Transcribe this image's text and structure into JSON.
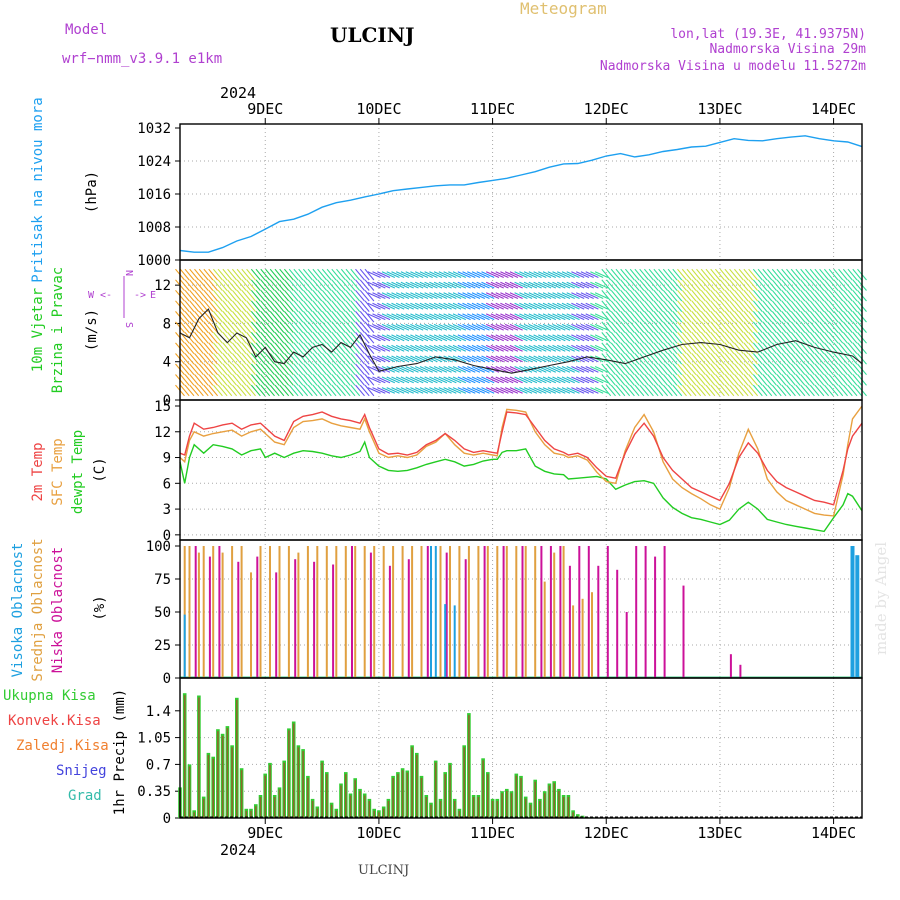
{
  "header": {
    "model_label": "Model",
    "model_name": "wrf−nmm_v3.9.1  e1km",
    "station": "ULCINJ",
    "product": "Meteogram",
    "coords": "lon,lat (19.3E, 41.9375N)",
    "elevation": "Nadmorska Visina 29m",
    "model_elevation": "Nadmorska Visina u modelu 11.5272m",
    "watermark": "made by Angel",
    "footer_station": "ULCINJ"
  },
  "colors": {
    "pressure": "#1ea0f0",
    "temp2m": "#ee4444",
    "sfc_temp": "#e8a040",
    "dewpoint": "#22cc22",
    "cloud_high": "#1ea0e0",
    "cloud_mid": "#e0a040",
    "cloud_low": "#cc1199",
    "precip_total": "#33cc33",
    "precip_conv": "#ee4444",
    "precip_frozen": "#f08030",
    "snow": "#4444dd",
    "grad": "#33bbaa",
    "header_purple": "#b040d0",
    "header_gold": "#e0c070"
  },
  "time_axis": {
    "top_year": "2024",
    "bottom_year": "2024",
    "day_labels": [
      "9DEC",
      "10DEC",
      "11DEC",
      "12DEC",
      "13DEC",
      "14DEC"
    ],
    "day_hours": [
      24,
      48,
      72,
      96,
      120,
      144
    ],
    "hour_range": [
      6,
      150
    ]
  },
  "chart_data": [
    {
      "id": "pressure",
      "type": "line",
      "ylabel": [
        "Pritisak na nivou mora",
        "(hPa)"
      ],
      "ylim": [
        1000,
        1032
      ],
      "yticks": [
        1000,
        1008,
        1016,
        1024,
        1032
      ],
      "series": [
        {
          "x": [
            6,
            9,
            12,
            15,
            18,
            21,
            24,
            27,
            30,
            33,
            36,
            39,
            42,
            45,
            48,
            51,
            54,
            57,
            60,
            63,
            66,
            69,
            72,
            75,
            78,
            81,
            84,
            87,
            90,
            93,
            96,
            99,
            102,
            105,
            108,
            111,
            114,
            117,
            120,
            123,
            126,
            129,
            132,
            135,
            138,
            141,
            144,
            147,
            150
          ],
          "values": [
            1002.3,
            1001.9,
            1001.9,
            1003.0,
            1004.6,
            1005.7,
            1007.5,
            1009.3,
            1009.9,
            1011.1,
            1012.8,
            1013.9,
            1014.5,
            1015.3,
            1016.0,
            1016.8,
            1017.2,
            1017.6,
            1018.0,
            1018.2,
            1018.2,
            1018.8,
            1019.3,
            1019.8,
            1020.6,
            1021.4,
            1022.5,
            1023.3,
            1023.4,
            1024.2,
            1025.2,
            1025.8,
            1025.0,
            1025.5,
            1026.3,
            1026.8,
            1027.4,
            1027.6,
            1028.5,
            1029.4,
            1029.0,
            1028.9,
            1029.4,
            1029.8,
            1030.1,
            1029.4,
            1028.9,
            1028.6,
            1027.5
          ]
        }
      ]
    },
    {
      "id": "wind",
      "type": "line",
      "ylabel": [
        "10m Vjetar",
        "Brzina i Pravac",
        "(m/s)"
      ],
      "compass": {
        "n": "N",
        "s": "S",
        "w": "W",
        "e": "E"
      },
      "ylim": [
        0,
        14
      ],
      "yticks": [
        0,
        4,
        8,
        12
      ],
      "series": [
        {
          "x": [
            6,
            8,
            10,
            12,
            14,
            16,
            18,
            20,
            22,
            24,
            26,
            28,
            30,
            32,
            34,
            36,
            38,
            40,
            42,
            44,
            46,
            48,
            52,
            56,
            60,
            64,
            68,
            72,
            76,
            80,
            84,
            88,
            92,
            96,
            100,
            104,
            108,
            112,
            116,
            120,
            124,
            128,
            132,
            136,
            140,
            144,
            148,
            150
          ],
          "values": [
            7,
            6.5,
            8.5,
            9.5,
            7,
            6,
            7,
            6.5,
            4.5,
            5.5,
            4,
            3.8,
            5,
            4.5,
            5.5,
            5.8,
            5.0,
            6.0,
            5.5,
            6.8,
            4.8,
            3.0,
            3.5,
            3.8,
            4.5,
            4.2,
            3.6,
            3.2,
            2.8,
            3.2,
            3.6,
            4.0,
            4.5,
            4.2,
            3.8,
            4.5,
            5.2,
            5.8,
            6.0,
            5.8,
            5.2,
            5.0,
            5.8,
            6.2,
            5.5,
            5.0,
            4.6,
            3.8
          ]
        }
      ]
    },
    {
      "id": "temperature",
      "type": "line",
      "ylabel": [
        "2m Temp",
        "SFC Temp",
        "dewpt Temp",
        "(C)"
      ],
      "ylim": [
        -0.6,
        15
      ],
      "yticks": [
        0,
        3,
        6,
        9,
        12,
        15
      ],
      "x": [
        6,
        7,
        8,
        9,
        11,
        13,
        15,
        17,
        19,
        21,
        23,
        24,
        26,
        28,
        30,
        32,
        34,
        36,
        38,
        40,
        42,
        44,
        45,
        46,
        48,
        50,
        52,
        54,
        56,
        58,
        60,
        62,
        64,
        66,
        68,
        70,
        72,
        73,
        74,
        75,
        77,
        79,
        81,
        83,
        85,
        87,
        88,
        90,
        92,
        94,
        96,
        98,
        100,
        102,
        104,
        106,
        108,
        110,
        112,
        114,
        116,
        118,
        120,
        122,
        124,
        126,
        128,
        130,
        132,
        134,
        136,
        138,
        140,
        142,
        144,
        146,
        147,
        148,
        150
      ],
      "series": [
        {
          "name": "2m Temp",
          "values": [
            9.5,
            9.3,
            11.5,
            13,
            12.3,
            12.5,
            12.8,
            13,
            12.3,
            12.8,
            13,
            12.5,
            11.5,
            11,
            13.2,
            13.8,
            14,
            14.3,
            13.8,
            13.5,
            13.3,
            13,
            14,
            12.5,
            10,
            9.4,
            9.5,
            9.3,
            9.6,
            10.5,
            11,
            11.8,
            11,
            10,
            9.6,
            9.8,
            9.6,
            9.5,
            12,
            14.3,
            14.2,
            14,
            12.5,
            11,
            10,
            9.6,
            9.3,
            9.5,
            9,
            7.8,
            6.8,
            6.6,
            9.5,
            11.7,
            13,
            11.5,
            9,
            7.5,
            6.5,
            5.5,
            5,
            4.5,
            4,
            6,
            9,
            10.7,
            9.5,
            7.5,
            6.2,
            5.5,
            5,
            4.5,
            4,
            3.8,
            3.5,
            7.5,
            10,
            11.5,
            13
          ]
        },
        {
          "name": "SFC Temp",
          "values": [
            9,
            8.5,
            11,
            12,
            11.5,
            11.8,
            12,
            12.2,
            11.5,
            12,
            12.3,
            11.8,
            10.8,
            10.5,
            12.5,
            13.2,
            13.3,
            13.5,
            13,
            12.7,
            12.5,
            12.3,
            13.5,
            12,
            9.5,
            9,
            9.2,
            9,
            9.3,
            10.3,
            10.8,
            11.8,
            10.5,
            9.5,
            9.3,
            9.5,
            9.3,
            9.2,
            12.5,
            14.6,
            14.5,
            14.3,
            12,
            10.5,
            9.5,
            9.3,
            9,
            9.2,
            8.7,
            7.3,
            6.2,
            6,
            9.8,
            12.5,
            14,
            12,
            8.5,
            6.5,
            5.5,
            4.8,
            4.2,
            3.5,
            3,
            5.5,
            9.5,
            12.3,
            10,
            6.5,
            5,
            4,
            3.5,
            3,
            2.5,
            2.3,
            2.2,
            7,
            10.5,
            13.5,
            15
          ]
        },
        {
          "name": "dewpt Temp",
          "values": [
            8.5,
            6,
            9,
            10.5,
            9.5,
            10.5,
            10.3,
            10,
            9.3,
            9.8,
            10,
            9,
            9.5,
            9,
            9.5,
            9.8,
            9.7,
            9.5,
            9.2,
            9,
            9.3,
            9.7,
            10.8,
            9,
            8,
            7.5,
            7.4,
            7.5,
            7.8,
            8.2,
            8.5,
            8.8,
            8.5,
            8,
            8.2,
            8.6,
            8.8,
            8.8,
            9.6,
            9.8,
            9.8,
            10,
            8,
            7.4,
            7.1,
            7,
            6.5,
            6.6,
            6.7,
            6.8,
            6.5,
            5.3,
            5.8,
            6.2,
            6.3,
            6,
            4.3,
            3.2,
            2.5,
            2,
            1.8,
            1.5,
            1.2,
            1.7,
            3,
            3.8,
            3,
            1.8,
            1.5,
            1.2,
            1,
            0.8,
            0.6,
            0.4,
            2,
            3.5,
            4.8,
            4.5,
            2.8
          ]
        }
      ]
    },
    {
      "id": "clouds",
      "type": "bar",
      "ylabel": [
        "Visoka Oblacnost",
        "Srednja Oblacnost",
        "Niska Oblacnost",
        "(%)"
      ],
      "ylim": [
        0,
        100
      ],
      "yticks": [
        0,
        25,
        50,
        75,
        100
      ],
      "series": [
        {
          "name": "Visoka Oblacnost",
          "x": [
            7,
            59,
            60,
            62,
            64,
            148,
            149
          ],
          "values": [
            48,
            100,
            100,
            56,
            55,
            100,
            93
          ]
        },
        {
          "name": "Srednja Oblacnost",
          "x": [
            7,
            8,
            10,
            11,
            13,
            15,
            17,
            19,
            21,
            23,
            25,
            27,
            29,
            31,
            33,
            35,
            37,
            39,
            41,
            43,
            45,
            47,
            49,
            51,
            53,
            55,
            57,
            59,
            61,
            63,
            65,
            67,
            69,
            71,
            73,
            75,
            77,
            79,
            81,
            83,
            85,
            87,
            89,
            91,
            93
          ],
          "values": [
            100,
            100,
            95,
            100,
            100,
            95,
            100,
            100,
            80,
            100,
            100,
            100,
            100,
            95,
            100,
            100,
            100,
            100,
            100,
            100,
            100,
            100,
            100,
            100,
            100,
            100,
            100,
            100,
            100,
            100,
            100,
            100,
            100,
            100,
            100,
            100,
            100,
            100,
            100,
            73,
            95,
            100,
            55,
            60,
            65
          ]
        },
        {
          "name": "Niska Oblacnost",
          "x": [
            9,
            12,
            14,
            18,
            22,
            26,
            30,
            34,
            38,
            42,
            46,
            50,
            54,
            58,
            62,
            66,
            70,
            74,
            78,
            82,
            84,
            86,
            88,
            90,
            92,
            94,
            96,
            98,
            100,
            102,
            104,
            106,
            108,
            112,
            122,
            124
          ],
          "values": [
            100,
            92,
            100,
            88,
            92,
            80,
            90,
            88,
            86,
            100,
            95,
            85,
            90,
            100,
            95,
            90,
            100,
            100,
            100,
            100,
            100,
            100,
            85,
            100,
            100,
            85,
            100,
            82,
            50,
            100,
            100,
            92,
            100,
            70,
            18,
            10
          ]
        }
      ]
    },
    {
      "id": "precip",
      "type": "bar",
      "ylabel": [
        "1hr Precip (mm)"
      ],
      "legend": [
        "Ukupna Kisa",
        "Konvek.Kisa",
        "Zaledj.Kisa",
        "Snijeg",
        "Grad"
      ],
      "ylim": [
        0,
        1.75
      ],
      "yticks": [
        0,
        0.35,
        0.7,
        1.05,
        1.4
      ],
      "ytick_labels": [
        "0",
        "0.35",
        "0.7",
        "1.05",
        "1.4"
      ],
      "series": [
        {
          "name": "Ukupna Kisa",
          "x": [
            6,
            7,
            8,
            9,
            10,
            11,
            12,
            13,
            14,
            15,
            16,
            17,
            18,
            19,
            20,
            21,
            22,
            23,
            24,
            25,
            26,
            27,
            28,
            29,
            30,
            31,
            32,
            33,
            34,
            35,
            36,
            37,
            38,
            39,
            40,
            41,
            42,
            43,
            44,
            45,
            46,
            47,
            48,
            49,
            50,
            51,
            52,
            53,
            54,
            55,
            56,
            57,
            58,
            59,
            60,
            61,
            62,
            63,
            64,
            65,
            66,
            67,
            68,
            69,
            70,
            71,
            72,
            73,
            74,
            75,
            76,
            77,
            78,
            79,
            80,
            81,
            82,
            83,
            84,
            85,
            86,
            87,
            88,
            89,
            90,
            91,
            92,
            93,
            94,
            95,
            96,
            97
          ],
          "values": [
            0.4,
            1.63,
            0.7,
            0.1,
            1.6,
            0.28,
            0.85,
            0.8,
            1.16,
            1.1,
            1.2,
            0.95,
            1.57,
            0.65,
            0.12,
            0.12,
            0.18,
            0.3,
            0.58,
            0.72,
            0.3,
            0.4,
            0.75,
            1.17,
            1.26,
            0.95,
            0.9,
            0.55,
            0.25,
            0.15,
            0.75,
            0.6,
            0.2,
            0.12,
            0.45,
            0.6,
            0.32,
            0.52,
            0.38,
            0.32,
            0.25,
            0.12,
            0.1,
            0.15,
            0.25,
            0.55,
            0.6,
            0.65,
            0.62,
            0.95,
            0.85,
            0.55,
            0.3,
            0.2,
            0.75,
            0.25,
            0.6,
            0.72,
            0.25,
            0.12,
            0.95,
            1.37,
            0.3,
            0.3,
            0.78,
            0.6,
            0.25,
            0.25,
            0.35,
            0.38,
            0.35,
            0.58,
            0.55,
            0.28,
            0.2,
            0.5,
            0.25,
            0.35,
            0.45,
            0.48,
            0.38,
            0.3,
            0.3,
            0.1,
            0.05,
            0.03,
            0.01,
            0.01,
            0,
            0,
            0,
            0
          ]
        }
      ]
    }
  ]
}
